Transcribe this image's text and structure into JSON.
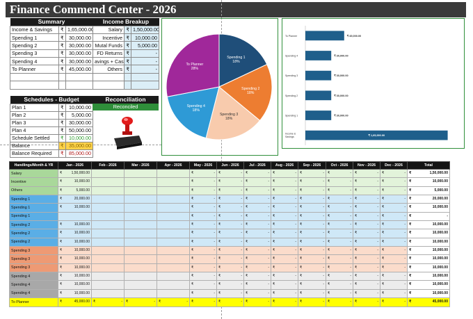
{
  "app": {
    "title": "Finance Commend Center - 2026"
  },
  "summary": {
    "header": "Summary",
    "rows": [
      {
        "label": "Income & Savings",
        "rs": "₹",
        "value": "1,65,000.00"
      },
      {
        "label": "Spending 1",
        "rs": "₹",
        "value": "30,000.00"
      },
      {
        "label": "Spending 2",
        "rs": "₹",
        "value": "30,000.00"
      },
      {
        "label": "Spending 3",
        "rs": "₹",
        "value": "30,000.00"
      },
      {
        "label": "Spending 4",
        "rs": "₹",
        "value": "30,000.00"
      },
      {
        "label": "To Planner",
        "rs": "₹",
        "value": "45,000.00"
      }
    ]
  },
  "income_breakup": {
    "header": "Income Breakup",
    "rows": [
      {
        "label": "Salary",
        "rs": "₹",
        "value": "1,50,000.00"
      },
      {
        "label": "Incentive",
        "rs": "₹",
        "value": "10,000.00"
      },
      {
        "label": "Mutal Funds",
        "rs": "₹",
        "value": "5,000.00"
      },
      {
        "label": "FD Returns",
        "rs": "₹",
        "value": "-"
      },
      {
        "label": "avings + Cash",
        "rs": "₹",
        "value": "-"
      },
      {
        "label": "Others",
        "rs": "₹",
        "value": "-"
      }
    ]
  },
  "schedules": {
    "header": "Schedules - Budget",
    "rows": [
      {
        "label": "Plan 1",
        "rs": "₹",
        "value": "10,000.00"
      },
      {
        "label": "Plan 2",
        "rs": "₹",
        "value": "5,000.00"
      },
      {
        "label": "Plan 3",
        "rs": "₹",
        "value": "30,000.00"
      },
      {
        "label": "Plan 4",
        "rs": "₹",
        "value": "50,000.00"
      },
      {
        "label": "Schedule Settled",
        "rs": "₹",
        "value": "10,000.00"
      },
      {
        "label": "Balance",
        "rs": "₹",
        "value": "35,000.00"
      },
      {
        "label": "Balance Required",
        "rs": "₹",
        "value": "85,000.00"
      }
    ]
  },
  "reconciliation": {
    "header": "Reconciliation",
    "status": "Reconciled"
  },
  "chart_data": [
    {
      "type": "pie",
      "slices": [
        {
          "label": "Spending 1",
          "value": 18,
          "pct_label": "18%",
          "color": "#1f4e79"
        },
        {
          "label": "Spending 2",
          "value": 18,
          "pct_label": "18%",
          "color": "#ed7d31"
        },
        {
          "label": "Spending 3",
          "value": 18,
          "pct_label": "18%",
          "color": "#f8cbad"
        },
        {
          "label": "Spending 4",
          "value": 18,
          "pct_label": "18%",
          "color": "#2e9ad6"
        },
        {
          "label": "To Planner",
          "value": 28,
          "pct_label": "28%",
          "color": "#a0289a"
        }
      ]
    },
    {
      "type": "bar",
      "orientation": "horizontal",
      "categories": [
        "To Planner",
        "Spending 4",
        "Spending 3",
        "Spending 2",
        "Spending 1",
        "Income & Savings"
      ],
      "values": [
        45000,
        30000,
        30000,
        30000,
        30000,
        165000
      ],
      "value_labels": [
        "₹ 45,000.00",
        "₹ 30,000.00",
        "₹ 30,000.00",
        "₹ 30,000.00",
        "₹ 30,000.00",
        "₹ 1,65,000.00"
      ],
      "xlim": [
        0,
        175000
      ],
      "color": "#1f5f8b",
      "grid": false
    }
  ],
  "monthly": {
    "headers": [
      "Handlings/Month & YR",
      "Jan - 2026",
      "Feb - 2026",
      "Mar - 2026",
      "Apr - 2026",
      "May - 2026",
      "Jun - 2026",
      "Jul - 2026",
      "Aug - 2026",
      "Sep - 2026",
      "Oct - 2026",
      "Nov - 2026",
      "Dec - 2026",
      "Total"
    ],
    "rs": "₹",
    "dash": "-",
    "rows": [
      {
        "label": "Salary",
        "group": "g",
        "jan": "1,50,000.00",
        "jan_rs": "₹",
        "months": [
          "",
          "",
          "",
          "-",
          "-",
          "-",
          "-",
          "-",
          "-",
          "-",
          "-"
        ],
        "total": "1,50,000.00"
      },
      {
        "label": "Incentive",
        "group": "g",
        "jan": "10,000.00",
        "jan_rs": "₹",
        "months": [
          "",
          "",
          "",
          "-",
          "-",
          "-",
          "-",
          "-",
          "-",
          "-",
          "-"
        ],
        "total": "10,000.00"
      },
      {
        "label": "Others",
        "group": "g",
        "jan": "5,000.00",
        "jan_rs": "₹",
        "months": [
          "",
          "",
          "",
          "-",
          "-",
          "-",
          "-",
          "-",
          "-",
          "-",
          "-"
        ],
        "total": "5,000.00"
      },
      {
        "label": "Spending 1",
        "group": "b",
        "jan": "20,000.00",
        "jan_rs": "₹",
        "months": [
          "",
          "",
          "",
          "-",
          "-",
          "-",
          "-",
          "-",
          "-",
          "-",
          "-"
        ],
        "total": "20,000.00"
      },
      {
        "label": "Spending 1",
        "group": "b",
        "jan": "10,000.00",
        "jan_rs": "₹",
        "months": [
          "",
          "",
          "",
          "-",
          "-",
          "-",
          "-",
          "-",
          "-",
          "-",
          "-"
        ],
        "total": "10,000.00"
      },
      {
        "label": "Spending 1",
        "group": "b",
        "jan": "",
        "jan_rs": "",
        "months": [
          "",
          "",
          "",
          "-",
          "-",
          "-",
          "-",
          "-",
          "-",
          "-",
          "-"
        ],
        "total": "-"
      },
      {
        "label": "Spending 2",
        "group": "b",
        "jan": "10,000.00",
        "jan_rs": "₹",
        "months": [
          "",
          "",
          "",
          "-",
          "-",
          "-",
          "-",
          "-",
          "-",
          "-",
          "-"
        ],
        "total": "10,000.00"
      },
      {
        "label": "Spending 2",
        "group": "b",
        "jan": "10,000.00",
        "jan_rs": "₹",
        "months": [
          "",
          "",
          "",
          "-",
          "-",
          "-",
          "-",
          "-",
          "-",
          "-",
          "-"
        ],
        "total": "10,000.00"
      },
      {
        "label": "Spending 2",
        "group": "b",
        "jan": "10,000.00",
        "jan_rs": "₹",
        "months": [
          "",
          "",
          "",
          "-",
          "-",
          "-",
          "-",
          "-",
          "-",
          "-",
          "-"
        ],
        "total": "10,000.00"
      },
      {
        "label": "Spending 3",
        "group": "o",
        "jan": "10,000.00",
        "jan_rs": "₹",
        "months": [
          "",
          "",
          "",
          "-",
          "-",
          "-",
          "-",
          "-",
          "-",
          "-",
          "-"
        ],
        "total": "10,000.00"
      },
      {
        "label": "Spending 3",
        "group": "o",
        "jan": "10,000.00",
        "jan_rs": "₹",
        "months": [
          "",
          "",
          "",
          "-",
          "-",
          "-",
          "-",
          "-",
          "-",
          "-",
          "-"
        ],
        "total": "10,000.00"
      },
      {
        "label": "Spending 3",
        "group": "o",
        "jan": "10,000.00",
        "jan_rs": "₹",
        "months": [
          "",
          "",
          "",
          "-",
          "-",
          "-",
          "-",
          "-",
          "-",
          "-",
          "-"
        ],
        "total": "10,000.00"
      },
      {
        "label": "Spending 4",
        "group": "k",
        "jan": "10,000.00",
        "jan_rs": "₹",
        "months": [
          "",
          "",
          "",
          "-",
          "-",
          "-",
          "-",
          "-",
          "-",
          "-",
          "-"
        ],
        "total": "10,000.00"
      },
      {
        "label": "Spending 4",
        "group": "k",
        "jan": "10,000.00",
        "jan_rs": "₹",
        "months": [
          "",
          "",
          "",
          "-",
          "-",
          "-",
          "-",
          "-",
          "-",
          "-",
          "-"
        ],
        "total": "10,000.00"
      },
      {
        "label": "Spending 4",
        "group": "k",
        "jan": "10,000.00",
        "jan_rs": "₹",
        "months": [
          "",
          "",
          "",
          "-",
          "-",
          "-",
          "-",
          "-",
          "-",
          "-",
          "-"
        ],
        "total": "10,000.00"
      },
      {
        "label": "To Planner",
        "group": "y",
        "jan": "45,000.00",
        "jan_rs": "₹",
        "months": [
          "-",
          "-",
          "-",
          "-",
          "-",
          "-",
          "-",
          "-",
          "-",
          "-",
          "-"
        ],
        "total": "45,000.00"
      }
    ]
  }
}
